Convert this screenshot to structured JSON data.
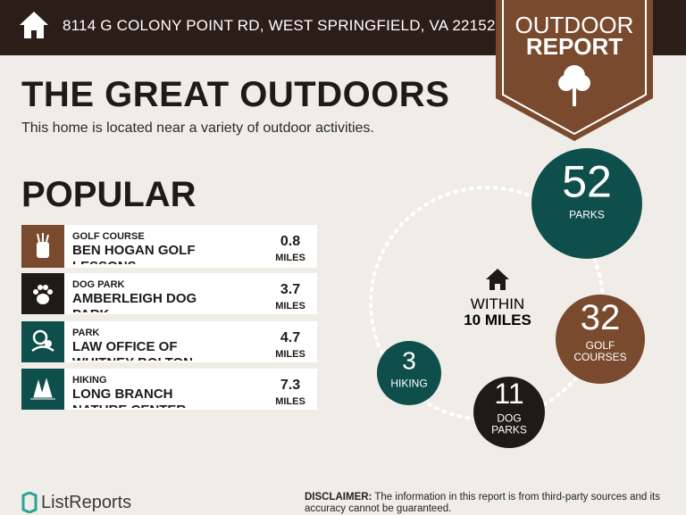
{
  "header": {
    "address": "8114 G COLONY POINT RD, WEST SPRINGFIELD, VA 22152"
  },
  "badge": {
    "line1": "OUTDOOR",
    "line2": "REPORT"
  },
  "title": "THE GREAT OUTDOORS",
  "subtitle": "This home is located near a variety of outdoor activities.",
  "popular": {
    "heading": "POPULAR",
    "items": [
      {
        "category": "GOLF COURSE",
        "name": "BEN HOGAN GOLF LESSONS",
        "distance": 0.8,
        "unit": "MILES"
      },
      {
        "category": "DOG PARK",
        "name": "AMBERLEIGH DOG PARK",
        "distance": 3.7,
        "unit": "MILES"
      },
      {
        "category": "PARK",
        "name": "LAW OFFICE OF WHITNEY BOLTON",
        "distance": 4.7,
        "unit": "MILES"
      },
      {
        "category": "HIKING",
        "name": "LONG BRANCH NATURE CENTER",
        "distance": 7.3,
        "unit": "MILES"
      }
    ]
  },
  "summary": {
    "center": {
      "line1": "WITHIN",
      "line2": "10 MILES"
    },
    "circles": [
      {
        "count": 52,
        "label_lines": [
          "PARKS"
        ]
      },
      {
        "count": 32,
        "label_lines": [
          "GOLF",
          "COURSES"
        ]
      },
      {
        "count": 11,
        "label_lines": [
          "DOG",
          "PARKS"
        ]
      },
      {
        "count": 3,
        "label_lines": [
          "HIKING"
        ]
      }
    ]
  },
  "footer": {
    "brand": "ListReports",
    "disclaimer_label": "DISCLAIMER:",
    "disclaimer": "The information in this report is from third-party sources and its accuracy cannot be guaranteed."
  }
}
